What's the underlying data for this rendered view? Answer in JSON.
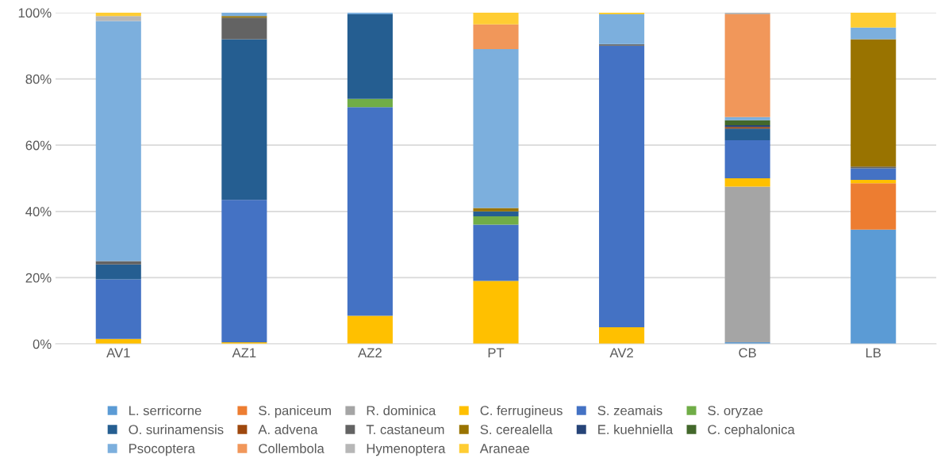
{
  "chart_data": {
    "type": "bar",
    "stacked": true,
    "categories": [
      "AV1",
      "AZ1",
      "AZ2",
      "PT",
      "AV2",
      "CB",
      "LB"
    ],
    "series": [
      {
        "name": "L. serricorne",
        "color": "#5b9bd5",
        "values": [
          0,
          0,
          0,
          0,
          0,
          0.5,
          34.5
        ]
      },
      {
        "name": "S. paniceum",
        "color": "#ed7d31",
        "values": [
          0,
          0,
          0,
          0,
          0,
          0,
          14
        ]
      },
      {
        "name": "R. dominica",
        "color": "#a5a5a5",
        "values": [
          0,
          0,
          0,
          0,
          0,
          47,
          0
        ]
      },
      {
        "name": "C. ferrugineus",
        "color": "#ffc000",
        "values": [
          1.5,
          0.5,
          8.5,
          19,
          5,
          2.5,
          1
        ]
      },
      {
        "name": "S. zeamais",
        "color": "#4472c4",
        "values": [
          18,
          43,
          63,
          17,
          85,
          11.5,
          3.5
        ]
      },
      {
        "name": "S. oryzae",
        "color": "#70ad47",
        "values": [
          0,
          0,
          2.5,
          2.5,
          0,
          0,
          0
        ]
      },
      {
        "name": "O. surinamensis",
        "color": "#255e91",
        "values": [
          4.5,
          48.5,
          25.5,
          1.5,
          0,
          3.5,
          0
        ]
      },
      {
        "name": "A. advena",
        "color": "#9e480e",
        "values": [
          0,
          0,
          0,
          0,
          0,
          0.5,
          0
        ]
      },
      {
        "name": "T. castaneum",
        "color": "#636363",
        "values": [
          1,
          6.5,
          0,
          0,
          0.5,
          0,
          0.5
        ]
      },
      {
        "name": "S. cerealella",
        "color": "#997300",
        "values": [
          0,
          0.5,
          0,
          1,
          0,
          0,
          38.5
        ]
      },
      {
        "name": "E. kuehniella",
        "color": "#264478",
        "values": [
          0,
          0,
          0,
          0,
          0,
          0.5,
          0
        ]
      },
      {
        "name": "C. cephalonica",
        "color": "#43682b",
        "values": [
          0,
          0,
          0,
          0,
          0,
          1.5,
          0
        ]
      },
      {
        "name": "Psocoptera",
        "color": "#7cafdd",
        "values": [
          72.5,
          1,
          0.5,
          48,
          9,
          1,
          3.5
        ]
      },
      {
        "name": "Collembola",
        "color": "#f1975a",
        "values": [
          0,
          0,
          0,
          7.5,
          0,
          31,
          0
        ]
      },
      {
        "name": "Hymenoptera",
        "color": "#b7b7b7",
        "values": [
          1.5,
          0,
          0,
          0,
          0,
          0.5,
          0
        ]
      },
      {
        "name": "Araneae",
        "color": "#ffcd33",
        "values": [
          1,
          0,
          0,
          3.5,
          0.5,
          0,
          4.5
        ]
      }
    ],
    "ylim": [
      0,
      100
    ],
    "yticks": [
      {
        "value": 0,
        "label": "0%"
      },
      {
        "value": 20,
        "label": "20%"
      },
      {
        "value": 40,
        "label": "40%"
      },
      {
        "value": 60,
        "label": "60%"
      },
      {
        "value": 80,
        "label": "80%"
      },
      {
        "value": 100,
        "label": "100%"
      }
    ],
    "grid": "y",
    "legend": "bottom"
  }
}
